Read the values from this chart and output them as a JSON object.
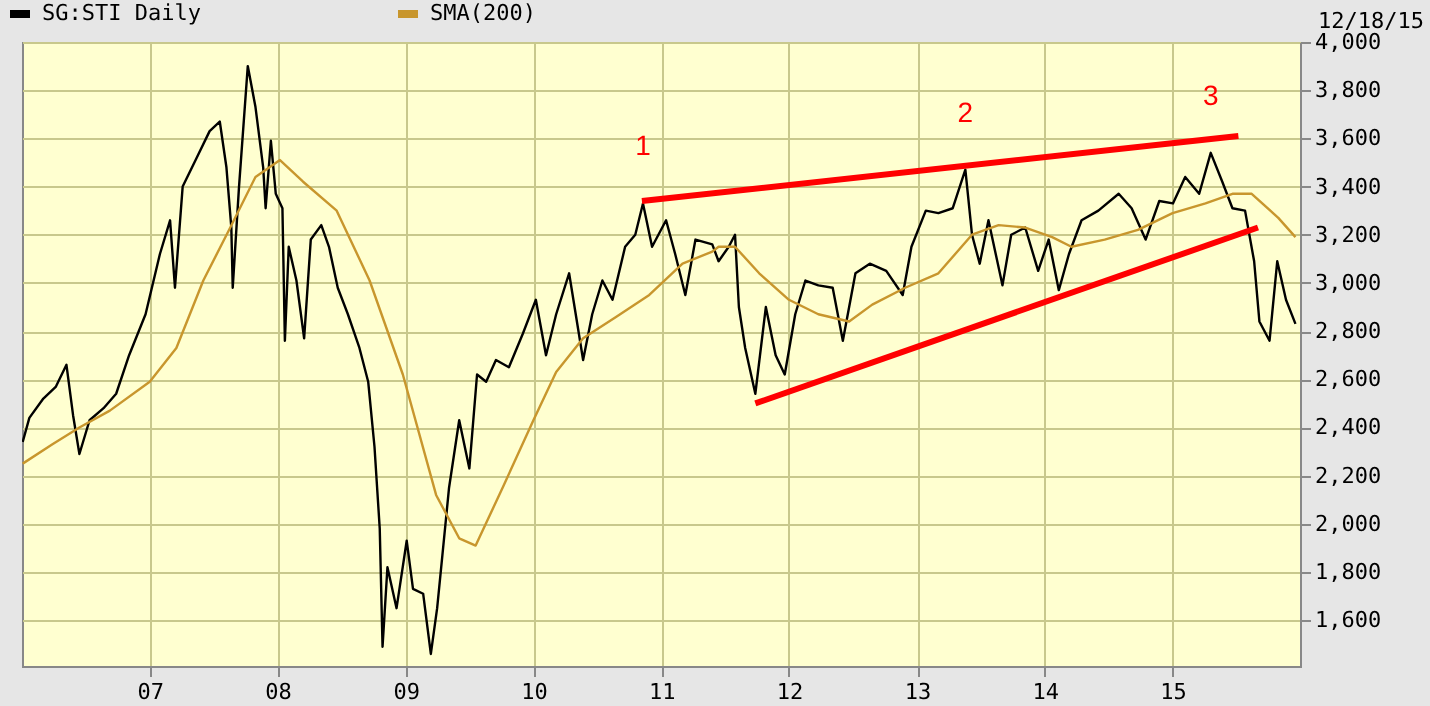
{
  "chart_data": {
    "type": "line",
    "legend": "top left",
    "grid": true,
    "marker": "none",
    "line_style": "solid",
    "xlim": [
      "2006-01-01",
      "2015-12-31"
    ],
    "xticks": [
      {
        "value": "2007-01-01",
        "label": "07"
      },
      {
        "value": "2008-01-01",
        "label": "08"
      },
      {
        "value": "2009-01-01",
        "label": "09"
      },
      {
        "value": "2010-01-01",
        "label": "10"
      },
      {
        "value": "2011-01-01",
        "label": "11"
      },
      {
        "value": "2012-01-01",
        "label": "12"
      },
      {
        "value": "2013-01-01",
        "label": "13"
      },
      {
        "value": "2014-01-01",
        "label": "14"
      },
      {
        "value": "2015-01-01",
        "label": "15"
      }
    ],
    "ylim": [
      1410,
      4000
    ],
    "yticks": [
      {
        "value": 1600,
        "label": "1,600"
      },
      {
        "value": 1800,
        "label": "1,800"
      },
      {
        "value": 2000,
        "label": "2,000"
      },
      {
        "value": 2200,
        "label": "2,200"
      },
      {
        "value": 2400,
        "label": "2,400"
      },
      {
        "value": 2600,
        "label": "2,600"
      },
      {
        "value": 2800,
        "label": "2,800"
      },
      {
        "value": 3000,
        "label": "3,000"
      },
      {
        "value": 3200,
        "label": "3,200"
      },
      {
        "value": 3400,
        "label": "3,400"
      },
      {
        "value": 3600,
        "label": "3,600"
      },
      {
        "value": 3800,
        "label": "3,800"
      },
      {
        "value": 4000,
        "label": "4,000"
      }
    ],
    "annotations": [
      "12/18/15",
      {
        "text": "1",
        "x": "2010-11-10",
        "y": 3330
      },
      {
        "text": "2",
        "x": "2013-05-19",
        "y": 3470
      },
      {
        "text": "3",
        "x": "2015-04-20",
        "y": 3540
      }
    ],
    "series": [
      {
        "name": "SG:STI Daily",
        "color": "#000000",
        "type": "line",
        "x": [
          "2006-01-03",
          "2006-01-22",
          "2006-03-03",
          "2006-04-08",
          "2006-05-08",
          "2006-05-27",
          "2006-06-14",
          "2006-07-13",
          "2006-08-22",
          "2006-09-27",
          "2006-11-03",
          "2006-12-20",
          "2007-01-30",
          "2007-02-28",
          "2007-03-14",
          "2007-04-05",
          "2007-05-12",
          "2007-06-21",
          "2007-07-20",
          "2007-08-08",
          "2007-08-22",
          "2007-08-26",
          "2007-09-13",
          "2007-10-08",
          "2007-10-30",
          "2007-11-21",
          "2007-11-28",
          "2007-12-13",
          "2007-12-27",
          "2008-01-15",
          "2008-01-22",
          "2008-02-02",
          "2008-02-24",
          "2008-03-17",
          "2008-04-05",
          "2008-05-05",
          "2008-05-27",
          "2008-06-21",
          "2008-07-20",
          "2008-08-22",
          "2008-09-16",
          "2008-10-04",
          "2008-10-19",
          "2008-10-27",
          "2008-11-10",
          "2008-12-06",
          "2009-01-04",
          "2009-01-22",
          "2009-02-20",
          "2009-03-14",
          "2009-04-01",
          "2009-04-16",
          "2009-05-05",
          "2009-06-03",
          "2009-07-02",
          "2009-07-24",
          "2009-08-19",
          "2009-09-16",
          "2009-10-23",
          "2009-12-02",
          "2010-01-08",
          "2010-02-06",
          "2010-03-07",
          "2010-04-13",
          "2010-05-23",
          "2010-06-18",
          "2010-07-17",
          "2010-08-15",
          "2010-09-20",
          "2010-10-19",
          "2010-11-10",
          "2010-12-06",
          "2011-01-15",
          "2011-02-10",
          "2011-03-11",
          "2011-04-09",
          "2011-05-27",
          "2011-06-14",
          "2011-07-13",
          "2011-07-31",
          "2011-08-11",
          "2011-08-29",
          "2011-09-27",
          "2011-10-27",
          "2011-11-24",
          "2011-12-20",
          "2012-01-19",
          "2012-02-17",
          "2012-03-25",
          "2012-05-05",
          "2012-06-03",
          "2012-07-09",
          "2012-08-19",
          "2012-10-05",
          "2012-11-21",
          "2012-12-16",
          "2013-01-26",
          "2013-03-03",
          "2013-04-13",
          "2013-05-19",
          "2013-06-07",
          "2013-06-29",
          "2013-07-24",
          "2013-09-02",
          "2013-09-27",
          "2013-11-06",
          "2013-12-13",
          "2014-01-12",
          "2014-02-10",
          "2014-03-11",
          "2014-04-16",
          "2014-06-03",
          "2014-07-31",
          "2014-09-06",
          "2014-10-16",
          "2014-11-24",
          "2015-01-02",
          "2015-02-06",
          "2015-03-18",
          "2015-04-20",
          "2015-05-23",
          "2015-06-21",
          "2015-07-27",
          "2015-08-22",
          "2015-09-06",
          "2015-10-05",
          "2015-10-27",
          "2015-11-21",
          "2015-12-18"
        ],
        "values": [
          2340,
          2440,
          2520,
          2570,
          2660,
          2450,
          2290,
          2430,
          2480,
          2540,
          2700,
          2870,
          3120,
          3260,
          2980,
          3400,
          3510,
          3630,
          3670,
          3480,
          3230,
          2980,
          3400,
          3900,
          3730,
          3480,
          3310,
          3590,
          3370,
          3310,
          2760,
          3150,
          3010,
          2770,
          3180,
          3240,
          3150,
          2980,
          2870,
          2730,
          2590,
          2320,
          1980,
          1490,
          1820,
          1650,
          1930,
          1730,
          1710,
          1460,
          1650,
          1870,
          2150,
          2430,
          2230,
          2620,
          2590,
          2680,
          2650,
          2790,
          2930,
          2700,
          2870,
          3040,
          2680,
          2870,
          3010,
          2930,
          3150,
          3200,
          3330,
          3150,
          3260,
          3120,
          2950,
          3180,
          3160,
          3090,
          3150,
          3200,
          2900,
          2730,
          2540,
          2900,
          2700,
          2620,
          2870,
          3010,
          2990,
          2980,
          2760,
          3040,
          3080,
          3050,
          2950,
          3150,
          3300,
          3290,
          3310,
          3470,
          3200,
          3080,
          3260,
          2990,
          3200,
          3230,
          3050,
          3180,
          2970,
          3120,
          3260,
          3300,
          3370,
          3310,
          3180,
          3340,
          3330,
          3440,
          3370,
          3540,
          3420,
          3310,
          3300,
          3090,
          2840,
          2760,
          3090,
          2930,
          2830
        ]
      },
      {
        "name": "SMA(200)",
        "color": "#c8962d",
        "type": "line",
        "x": [
          "2006-01-03",
          "2006-03-29",
          "2006-06-14",
          "2006-09-09",
          "2007-01-01",
          "2007-03-18",
          "2007-06-03",
          "2007-08-19",
          "2007-10-30",
          "2008-01-08",
          "2008-03-14",
          "2008-06-18",
          "2008-09-20",
          "2008-12-24",
          "2009-03-29",
          "2009-06-03",
          "2009-07-20",
          "2009-10-05",
          "2010-01-01",
          "2010-03-07",
          "2010-05-23",
          "2010-08-26",
          "2010-11-28",
          "2011-03-03",
          "2011-05-27",
          "2011-06-14",
          "2011-07-31",
          "2011-10-08",
          "2012-01-01",
          "2012-03-25",
          "2012-06-21",
          "2012-08-26",
          "2012-11-28",
          "2013-03-03",
          "2013-06-07",
          "2013-08-22",
          "2013-11-06",
          "2014-01-22",
          "2014-03-18",
          "2014-06-21",
          "2014-09-24",
          "2015-01-01",
          "2015-04-05",
          "2015-06-21",
          "2015-08-15",
          "2015-10-30",
          "2015-12-18"
        ],
        "values": [
          2250,
          2330,
          2400,
          2470,
          2590,
          2730,
          3010,
          3230,
          3440,
          3510,
          3420,
          3300,
          3010,
          2620,
          2120,
          1940,
          1910,
          2150,
          2430,
          2630,
          2770,
          2860,
          2950,
          3080,
          3130,
          3150,
          3150,
          3040,
          2930,
          2870,
          2840,
          2910,
          2980,
          3040,
          3200,
          3240,
          3230,
          3190,
          3150,
          3180,
          3220,
          3290,
          3330,
          3370,
          3370,
          3270,
          3190
        ]
      },
      {
        "color": "#ff0000",
        "type": "line",
        "x": [
          "2010-11-07",
          "2015-07-08"
        ],
        "values": [
          3340,
          3610
        ]
      },
      {
        "color": "#ff0000",
        "type": "line",
        "x": [
          "2011-09-27",
          "2015-09-02"
        ],
        "values": [
          2500,
          3230
        ]
      }
    ]
  }
}
